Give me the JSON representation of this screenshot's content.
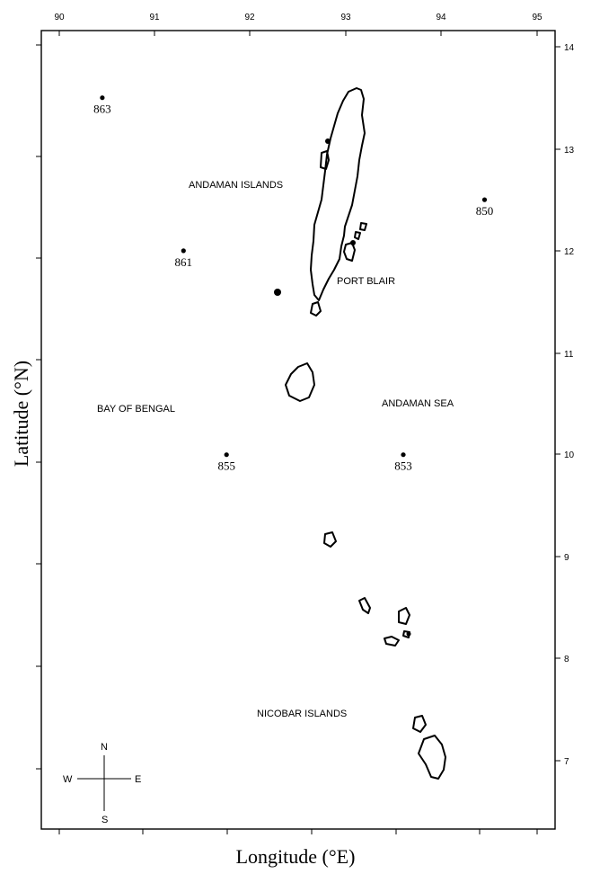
{
  "axes": {
    "x_title": "Longitude (°E)",
    "y_title": "Latitude (°N)",
    "x_ticks": [
      "90",
      "91",
      "92",
      "93",
      "94",
      "95"
    ],
    "y_ticks": [
      "14",
      "13",
      "12",
      "11",
      "10",
      "9",
      "8",
      "7"
    ],
    "x_range": [
      90,
      95
    ],
    "y_range": [
      6.2,
      14.1
    ]
  },
  "labels": {
    "andaman": "ANDAMAN ISLANDS",
    "port_blair": "PORT BLAIR",
    "bay_of_bengal": "BAY OF BENGAL",
    "andaman_sea": "ANDAMAN SEA",
    "nicobar": "NICOBAR ISLANDS"
  },
  "stations": [
    {
      "id": "863",
      "lon": 90.45,
      "lat": 13.5
    },
    {
      "id": "861",
      "lon": 91.3,
      "lat": 12.0
    },
    {
      "id": "850",
      "lon": 94.45,
      "lat": 12.5
    },
    {
      "id": "855",
      "lon": 91.75,
      "lat": 10.0
    },
    {
      "id": "853",
      "lon": 93.6,
      "lat": 10.0
    }
  ],
  "compass": {
    "n": "N",
    "s": "S",
    "e": "E",
    "w": "W"
  }
}
